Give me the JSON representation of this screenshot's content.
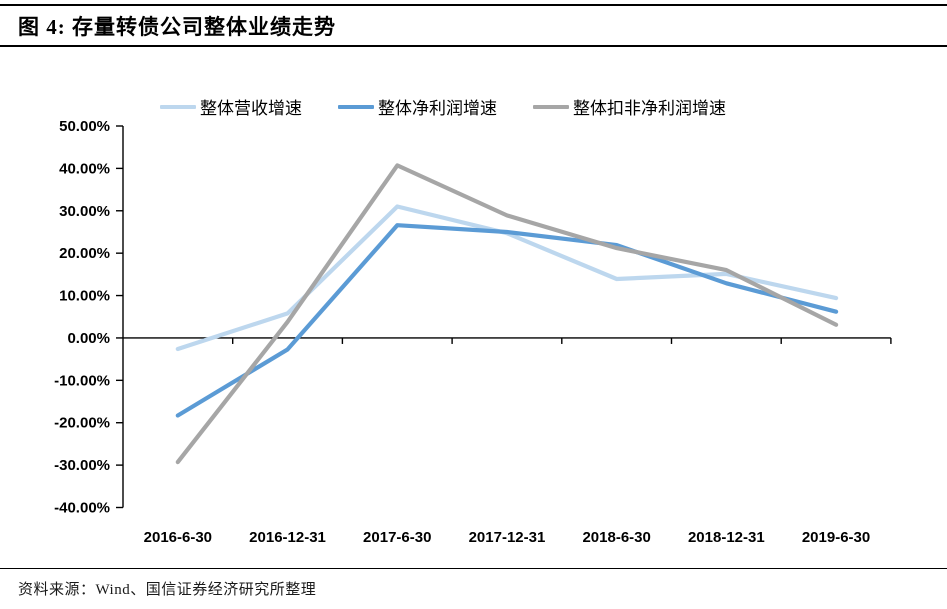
{
  "header": {
    "title": "图 4: 存量转债公司整体业绩走势"
  },
  "chart_data": {
    "type": "line",
    "title": "",
    "xlabel": "",
    "ylabel": "",
    "categories": [
      "2016-6-30",
      "2016-12-31",
      "2017-6-30",
      "2017-12-31",
      "2018-6-30",
      "2018-12-31",
      "2019-6-30"
    ],
    "series": [
      {
        "name": "整体营收增速",
        "color": "#BDD7EE",
        "values": [
          -2.6,
          5.8,
          31.0,
          24.7,
          13.9,
          15.1,
          9.4
        ]
      },
      {
        "name": "整体净利润增速",
        "color": "#5B9BD5",
        "values": [
          -18.3,
          -2.7,
          26.6,
          25.0,
          21.9,
          12.9,
          6.2
        ]
      },
      {
        "name": "整体扣非净利润增速",
        "color": "#A6A6A6",
        "values": [
          -29.3,
          3.8,
          40.7,
          28.9,
          21.2,
          16.0,
          3.1
        ]
      }
    ],
    "ylim": [
      -40,
      50
    ],
    "ytick_step": 10,
    "ytick_labels": [
      "50.00%",
      "40.00%",
      "30.00%",
      "20.00%",
      "10.00%",
      "0.00%",
      "-10.00%",
      "-20.00%",
      "-30.00%",
      "-40.00%"
    ],
    "grid": false,
    "legend_position": "top",
    "axis_color": "#000000"
  },
  "footer": {
    "source_text": "资料来源：Wind、国信证券经济研究所整理"
  }
}
